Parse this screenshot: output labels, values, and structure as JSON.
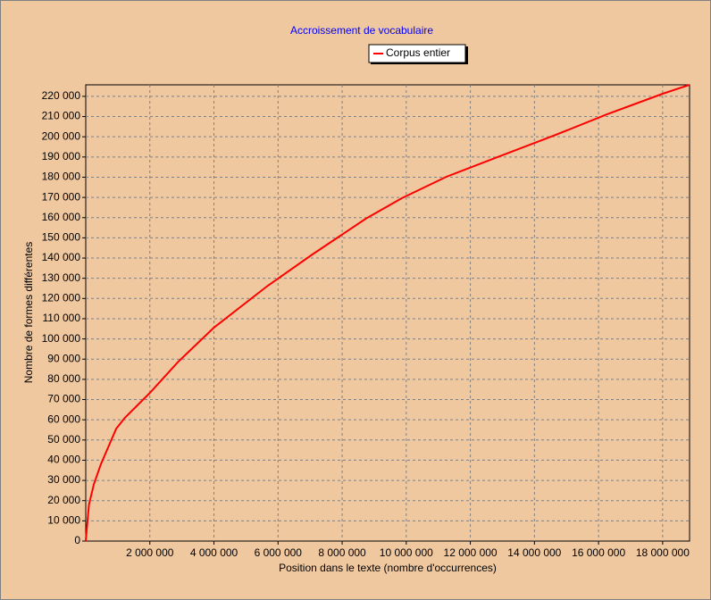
{
  "chart_data": {
    "type": "line",
    "title": "Accroissement de vocabulaire",
    "xlabel": "Position dans le texte (nombre d'occurrences)",
    "ylabel": "Nombre de formes différentes",
    "x": [
      0,
      100000,
      250000,
      470000,
      950000,
      1220000,
      2000000,
      2890000,
      4000000,
      5680000,
      7070000,
      8740000,
      9860000,
      11250000,
      12920000,
      14590000,
      16260000,
      18000000,
      18840000
    ],
    "series": [
      {
        "name": "Corpus entier",
        "color": "#ff0000",
        "values": [
          0,
          18000,
          28000,
          38000,
          55600,
          61000,
          73300,
          88800,
          105600,
          126300,
          141800,
          159500,
          169600,
          180200,
          190400,
          200500,
          211100,
          221300,
          225700
        ]
      }
    ],
    "xlim": [
      0,
      18840000
    ],
    "ylim": [
      0,
      225700
    ],
    "xticks": [
      {
        "value": 2000000,
        "label": "2 000 000"
      },
      {
        "value": 4000000,
        "label": "4 000 000"
      },
      {
        "value": 6000000,
        "label": "6 000 000"
      },
      {
        "value": 8000000,
        "label": "8 000 000"
      },
      {
        "value": 10000000,
        "label": "10 000 000"
      },
      {
        "value": 12000000,
        "label": "12 000 000"
      },
      {
        "value": 14000000,
        "label": "14 000 000"
      },
      {
        "value": 16000000,
        "label": "16 000 000"
      },
      {
        "value": 18000000,
        "label": "18 000 000"
      }
    ],
    "yticks": [
      0,
      {
        "value": 10000,
        "label": "10 000"
      },
      {
        "value": 20000,
        "label": "20 000"
      },
      {
        "value": 30000,
        "label": "30 000"
      },
      {
        "value": 40000,
        "label": "40 000"
      },
      {
        "value": 50000,
        "label": "50 000"
      },
      {
        "value": 60000,
        "label": "60 000"
      },
      {
        "value": 70000,
        "label": "70 000"
      },
      {
        "value": 80000,
        "label": "80 000"
      },
      {
        "value": 90000,
        "label": "90 000"
      },
      {
        "value": 100000,
        "label": "100 000"
      },
      {
        "value": 110000,
        "label": "110 000"
      },
      {
        "value": 120000,
        "label": "120 000"
      },
      {
        "value": 130000,
        "label": "130 000"
      },
      {
        "value": 140000,
        "label": "140 000"
      },
      {
        "value": 150000,
        "label": "150 000"
      },
      {
        "value": 160000,
        "label": "160 000"
      },
      {
        "value": 170000,
        "label": "170 000"
      },
      {
        "value": 180000,
        "label": "180 000"
      },
      {
        "value": 190000,
        "label": "190 000"
      },
      {
        "value": 200000,
        "label": "200 000"
      },
      {
        "value": 210000,
        "label": "210 000"
      },
      {
        "value": 220000,
        "label": "220 000"
      }
    ],
    "grid": true
  }
}
